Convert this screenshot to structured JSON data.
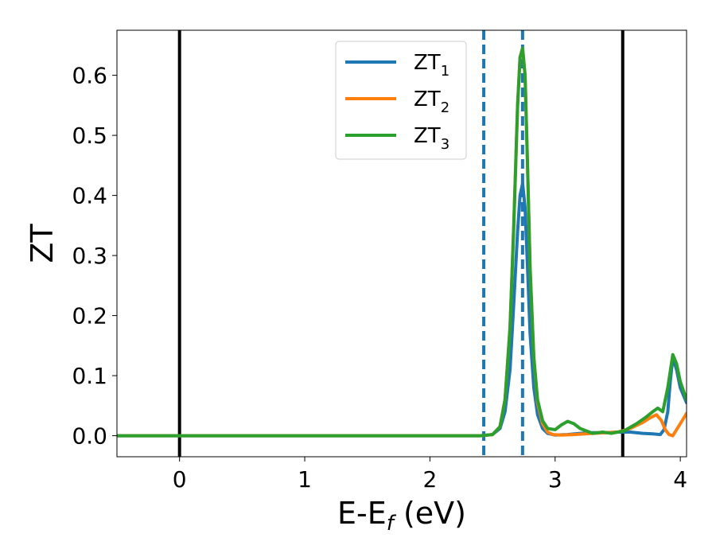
{
  "chart_data": {
    "type": "line",
    "xlabel": "E-E",
    "xlabel_sub": "f",
    "xlabel_unit": " (eV)",
    "ylabel": "ZT",
    "xlim": [
      -0.5,
      4.05
    ],
    "ylim": [
      -0.035,
      0.675
    ],
    "xticks": [
      0,
      1,
      2,
      3,
      4
    ],
    "xtick_labels": [
      "0",
      "1",
      "2",
      "3",
      "4"
    ],
    "yticks": [
      0.0,
      0.1,
      0.2,
      0.3,
      0.4,
      0.5,
      0.6
    ],
    "ytick_labels": [
      "0.0",
      "0.1",
      "0.2",
      "0.3",
      "0.4",
      "0.5",
      "0.6"
    ],
    "grid": false,
    "legend_position": "top-center",
    "vlines": [
      {
        "x": 0.0,
        "style": "solid",
        "color": "#000000"
      },
      {
        "x": 3.54,
        "style": "solid",
        "color": "#000000"
      },
      {
        "x": 2.43,
        "style": "dashed",
        "color": "#1f77b4"
      },
      {
        "x": 2.74,
        "style": "dashed",
        "color": "#1f77b4"
      }
    ],
    "series": [
      {
        "name": "ZT",
        "name_sub": "1",
        "color": "#1f77b4",
        "x": [
          -0.5,
          2.4,
          2.5,
          2.56,
          2.6,
          2.64,
          2.67,
          2.7,
          2.72,
          2.74,
          2.76,
          2.78,
          2.8,
          2.83,
          2.86,
          2.9,
          2.94,
          3.0,
          3.1,
          3.2,
          3.3,
          3.4,
          3.5,
          3.6,
          3.7,
          3.78,
          3.84,
          3.87,
          3.9,
          3.92,
          3.94,
          3.97,
          4.0,
          4.05
        ],
        "y": [
          0.0,
          0.0,
          0.002,
          0.012,
          0.04,
          0.11,
          0.22,
          0.34,
          0.4,
          0.42,
          0.38,
          0.28,
          0.17,
          0.08,
          0.035,
          0.012,
          0.004,
          0.001,
          0.002,
          0.004,
          0.005,
          0.005,
          0.006,
          0.006,
          0.004,
          0.003,
          0.002,
          0.01,
          0.04,
          0.09,
          0.13,
          0.11,
          0.08,
          0.055
        ]
      },
      {
        "name": "ZT",
        "name_sub": "2",
        "color": "#ff7f0e",
        "x": [
          -0.5,
          2.4,
          2.5,
          2.56,
          2.6,
          2.64,
          2.67,
          2.7,
          2.72,
          2.74,
          2.76,
          2.78,
          2.8,
          2.83,
          2.86,
          2.9,
          2.94,
          2.98,
          3.05,
          3.15,
          3.3,
          3.5,
          3.6,
          3.7,
          3.76,
          3.81,
          3.85,
          3.88,
          3.91,
          3.94,
          3.97,
          4.0,
          4.05
        ],
        "y": [
          0.0,
          0.0,
          0.002,
          0.015,
          0.06,
          0.18,
          0.35,
          0.55,
          0.63,
          0.645,
          0.6,
          0.45,
          0.28,
          0.13,
          0.055,
          0.02,
          0.006,
          0.002,
          0.001,
          0.002,
          0.004,
          0.006,
          0.012,
          0.022,
          0.03,
          0.035,
          0.025,
          0.01,
          0.002,
          0.0,
          0.01,
          0.02,
          0.037
        ]
      },
      {
        "name": "ZT",
        "name_sub": "3",
        "color": "#2ca02c",
        "x": [
          -0.5,
          2.4,
          2.5,
          2.56,
          2.6,
          2.64,
          2.67,
          2.7,
          2.72,
          2.74,
          2.76,
          2.78,
          2.8,
          2.83,
          2.86,
          2.9,
          2.94,
          3.0,
          3.05,
          3.1,
          3.15,
          3.2,
          3.3,
          3.38,
          3.45,
          3.55,
          3.65,
          3.72,
          3.78,
          3.82,
          3.86,
          3.9,
          3.94,
          3.97,
          4.0,
          4.05
        ],
        "y": [
          0.0,
          0.0,
          0.002,
          0.015,
          0.06,
          0.18,
          0.35,
          0.55,
          0.63,
          0.645,
          0.6,
          0.45,
          0.28,
          0.13,
          0.06,
          0.025,
          0.012,
          0.01,
          0.018,
          0.024,
          0.02,
          0.012,
          0.004,
          0.006,
          0.004,
          0.008,
          0.02,
          0.03,
          0.04,
          0.046,
          0.04,
          0.08,
          0.135,
          0.12,
          0.09,
          0.06
        ]
      }
    ]
  }
}
